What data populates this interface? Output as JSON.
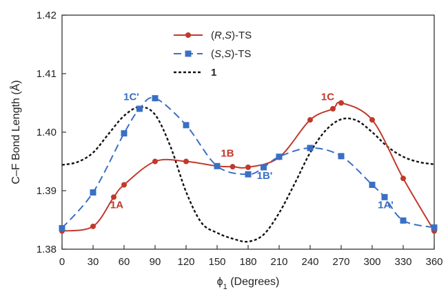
{
  "chart_data": {
    "type": "line",
    "title": "",
    "xlabel_prefix": "ϕ",
    "xlabel_sub": "1",
    "xlabel_suffix": " (Degrees)",
    "ylabel": "C–F Bond Length (Å)",
    "xlim": [
      0,
      360
    ],
    "ylim": [
      1.38,
      1.42
    ],
    "xticks": [
      0,
      30,
      60,
      90,
      120,
      150,
      180,
      210,
      240,
      270,
      300,
      330,
      360
    ],
    "yticks": [
      1.38,
      1.39,
      1.4,
      1.41,
      1.42
    ],
    "ytick_labels": [
      "1.38",
      "1.39",
      "1.40",
      "1.41",
      "1.42"
    ],
    "grid": false,
    "legend_position": "top-center",
    "series": [
      {
        "key": "rs",
        "name_parts": [
          {
            "t": "(",
            "i": false
          },
          {
            "t": "R",
            "i": true
          },
          {
            "t": ",",
            "i": false
          },
          {
            "t": "S",
            "i": true
          },
          {
            "t": ")-TS",
            "i": false
          }
        ],
        "color": "#c0392b",
        "dash": "solid",
        "marker": "circle",
        "x": [
          0,
          30,
          50,
          60,
          90,
          120,
          150,
          165,
          180,
          210,
          240,
          262,
          270,
          300,
          330,
          360
        ],
        "y": [
          1.3831,
          1.3839,
          1.3889,
          1.391,
          1.395,
          1.395,
          1.3942,
          1.3941,
          1.394,
          1.3957,
          1.4021,
          1.404,
          1.405,
          1.4021,
          1.3921,
          1.3831
        ]
      },
      {
        "key": "ss",
        "name_parts": [
          {
            "t": "(",
            "i": false
          },
          {
            "t": "S",
            "i": true
          },
          {
            "t": ",",
            "i": false
          },
          {
            "t": "S",
            "i": true
          },
          {
            "t": ")-TS",
            "i": false
          }
        ],
        "color": "#3a6fc4",
        "dash": "dashed",
        "marker": "square",
        "x": [
          0,
          30,
          60,
          75,
          90,
          120,
          150,
          180,
          195,
          210,
          240,
          270,
          300,
          312,
          330,
          360
        ],
        "y": [
          1.3836,
          1.3897,
          1.3998,
          1.404,
          1.4058,
          1.4012,
          1.3942,
          1.3928,
          1.394,
          1.3958,
          1.3973,
          1.3959,
          1.391,
          1.3889,
          1.3849,
          1.3837
        ]
      },
      {
        "key": "one",
        "name_parts": [
          {
            "t": "1",
            "i": false,
            "b": true
          }
        ],
        "color": "#111111",
        "dash": "dotted",
        "marker": "none",
        "x": [
          0,
          15,
          30,
          45,
          60,
          75,
          90,
          105,
          120,
          135,
          150,
          165,
          180,
          195,
          210,
          225,
          240,
          255,
          270,
          285,
          300,
          315,
          330,
          345,
          360
        ],
        "y": [
          1.3944,
          1.3949,
          1.3965,
          1.3997,
          1.4028,
          1.4043,
          1.403,
          1.3975,
          1.3898,
          1.3845,
          1.3828,
          1.3818,
          1.3813,
          1.3825,
          1.3862,
          1.3912,
          1.3965,
          1.4003,
          1.4022,
          1.402,
          1.4,
          1.3975,
          1.3958,
          1.3949,
          1.3945
        ]
      }
    ],
    "annotations": [
      {
        "text": "1C'",
        "series": "ss",
        "x": 67,
        "y": 1.4055
      },
      {
        "text": "1C",
        "series": "rs",
        "x": 257,
        "y": 1.4055
      },
      {
        "text": "1B",
        "series": "rs",
        "x": 160,
        "y": 1.3958
      },
      {
        "text": "1B'",
        "series": "ss",
        "x": 196,
        "y": 1.392
      },
      {
        "text": "1A",
        "series": "rs",
        "x": 53,
        "y": 1.387
      },
      {
        "text": "1A'",
        "series": "ss",
        "x": 313,
        "y": 1.387
      }
    ]
  }
}
